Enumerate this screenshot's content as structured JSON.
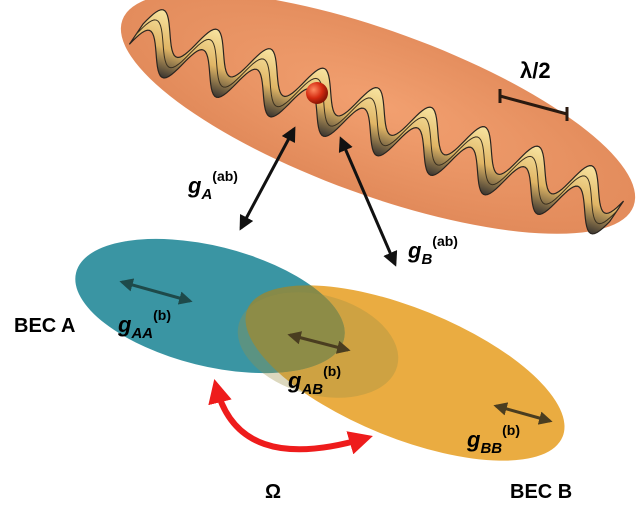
{
  "labels": {
    "lambda_half": "λ/2",
    "coupling_a": {
      "symbol": "g",
      "sub": "A",
      "sup": "(ab)"
    },
    "coupling_b": {
      "symbol": "g",
      "sub": "B",
      "sup": "(ab)"
    },
    "bec_a": "BEC A",
    "bec_b": "BEC B",
    "g_aa": {
      "symbol": "g",
      "sub": "AA",
      "sup": "(b)"
    },
    "g_ab": {
      "symbol": "g",
      "sub": "AB",
      "sup": "(b)"
    },
    "g_bb": {
      "symbol": "g",
      "sub": "BB",
      "sup": "(b)"
    },
    "omega": "Ω"
  },
  "colors": {
    "lattice_cloud": "#e8956a",
    "lattice_wave_light": "#f4d98a",
    "lattice_wave_dark": "#3a3530",
    "impurity_atom": "#d42a10",
    "bec_a": "#2f8f9e",
    "bec_b": "#e8a531",
    "overlap": "#8a8a45",
    "rabi_arrow": "#ee1c1c",
    "arrow": "#111111"
  }
}
